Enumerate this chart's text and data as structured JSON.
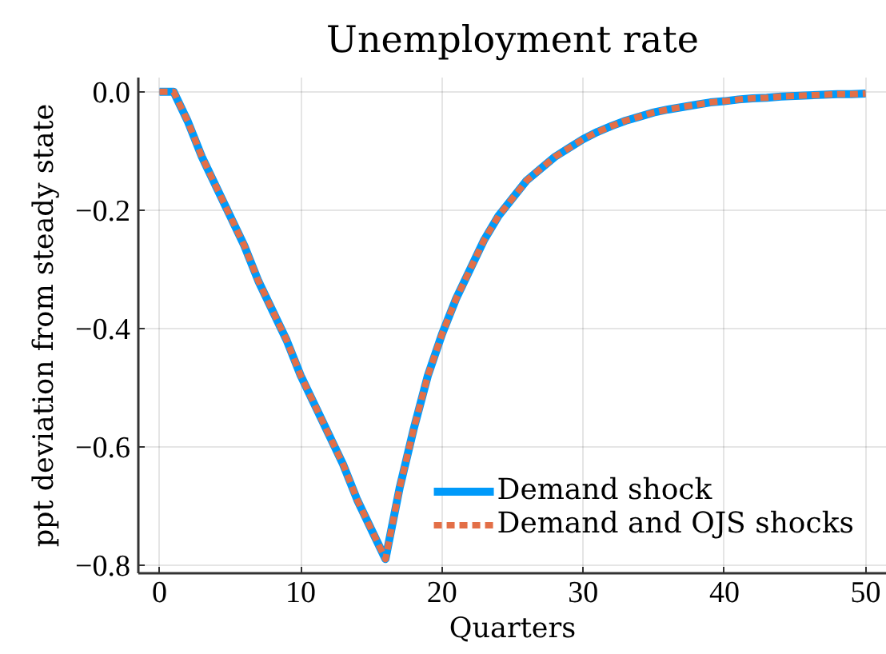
{
  "chart_data": {
    "type": "line",
    "title": "Unemployment rate",
    "xlabel": "Quarters",
    "ylabel": "ppt deviation from steady state",
    "x": [
      0,
      1,
      2,
      3,
      4,
      5,
      6,
      7,
      8,
      9,
      10,
      11,
      12,
      13,
      14,
      15,
      16,
      17,
      18,
      19,
      20,
      21,
      22,
      23,
      24,
      25,
      26,
      27,
      28,
      29,
      30,
      31,
      32,
      33,
      34,
      35,
      36,
      37,
      38,
      39,
      40,
      41,
      42,
      43,
      44,
      45,
      46,
      47,
      48,
      49,
      50
    ],
    "series": [
      {
        "name": "Demand shock",
        "color": "#009afa",
        "line_style": "solid",
        "values": [
          0,
          0,
          -0.05,
          -0.11,
          -0.16,
          -0.21,
          -0.26,
          -0.32,
          -0.37,
          -0.42,
          -0.48,
          -0.53,
          -0.58,
          -0.63,
          -0.69,
          -0.74,
          -0.79,
          -0.67,
          -0.57,
          -0.48,
          -0.41,
          -0.35,
          -0.3,
          -0.25,
          -0.21,
          -0.18,
          -0.15,
          -0.13,
          -0.11,
          -0.095,
          -0.08,
          -0.068,
          -0.058,
          -0.049,
          -0.042,
          -0.035,
          -0.03,
          -0.026,
          -0.022,
          -0.018,
          -0.016,
          -0.013,
          -0.011,
          -0.01,
          -0.008,
          -0.007,
          -0.006,
          -0.005,
          -0.004,
          -0.004,
          -0.003
        ]
      },
      {
        "name": "Demand and OJS shocks",
        "color": "#e36f47",
        "line_style": "dashed",
        "values": [
          0,
          0,
          -0.05,
          -0.11,
          -0.16,
          -0.21,
          -0.26,
          -0.32,
          -0.37,
          -0.42,
          -0.48,
          -0.53,
          -0.58,
          -0.63,
          -0.69,
          -0.74,
          -0.79,
          -0.67,
          -0.57,
          -0.48,
          -0.41,
          -0.35,
          -0.3,
          -0.25,
          -0.21,
          -0.18,
          -0.15,
          -0.13,
          -0.11,
          -0.095,
          -0.08,
          -0.068,
          -0.058,
          -0.049,
          -0.042,
          -0.035,
          -0.03,
          -0.026,
          -0.022,
          -0.018,
          -0.016,
          -0.013,
          -0.011,
          -0.01,
          -0.008,
          -0.007,
          -0.006,
          -0.005,
          -0.004,
          -0.004,
          -0.003
        ]
      }
    ],
    "xlim": [
      -1.5,
      51.5
    ],
    "ylim": [
      -0.814,
      0.024
    ],
    "xticks": [
      0,
      10,
      20,
      30,
      40,
      50
    ],
    "yticks": [
      {
        "value": 0,
        "label": "0.0"
      },
      {
        "value": -0.2,
        "label": "−0.2"
      },
      {
        "value": -0.4,
        "label": "−0.4"
      },
      {
        "value": -0.6,
        "label": "−0.6"
      },
      {
        "value": -0.8,
        "label": "−0.8"
      }
    ],
    "grid": true,
    "legend": "bottom right"
  }
}
